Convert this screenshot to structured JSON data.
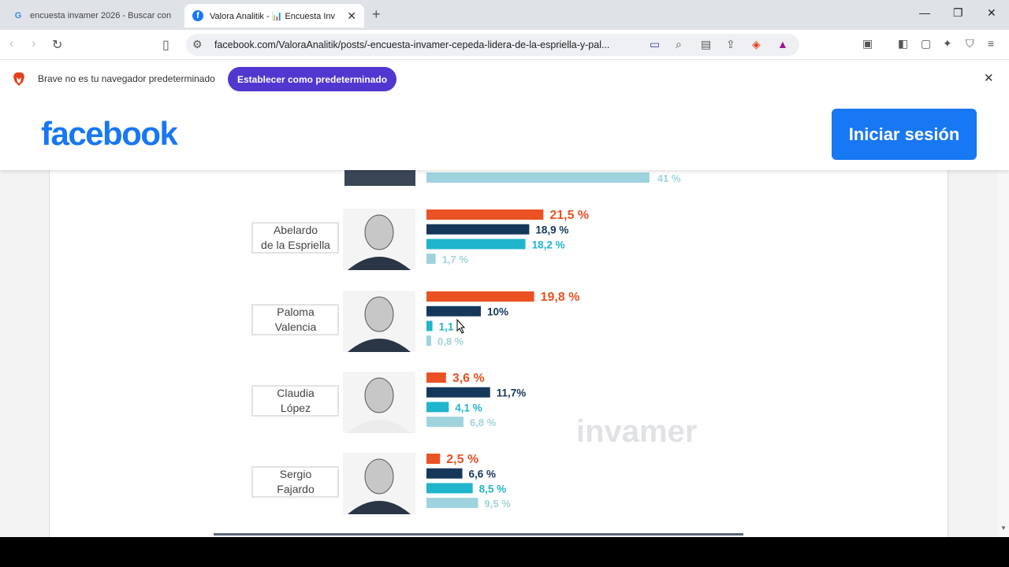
{
  "browser": {
    "tabs": [
      {
        "title": "encuesta invamer 2026 - Buscar con",
        "favicon": "google-icon"
      },
      {
        "title": "Valora Analitik - 📊 Encuesta Inv",
        "favicon": "facebook-icon"
      }
    ],
    "url": "facebook.com/ValoraAnalitik/posts/-encuesta-invamer-cepeda-lidera-de-la-espriella-y-pal...",
    "infobar": {
      "message": "Brave no es tu navegador predeterminado",
      "button_label": "Establecer como predeterminado"
    }
  },
  "facebook": {
    "logo": "facebook",
    "login_label": "Iniciar sesión"
  },
  "chart_data": {
    "type": "bar",
    "watermark": "invamer",
    "colors": [
      "#ea5224",
      "#15385a",
      "#1fb5cc",
      "#9fd3dd"
    ],
    "partial_top": {
      "value": 41,
      "label": "41 %"
    },
    "candidates": [
      {
        "name_line1": "Abelardo",
        "name_line2": "de la Espriella",
        "values": [
          21.5,
          18.9,
          18.2,
          1.7
        ],
        "labels": [
          "21,5 %",
          "18,9 %",
          "18,2 %",
          "1,7 %"
        ]
      },
      {
        "name_line1": "Paloma",
        "name_line2": "Valencia",
        "values": [
          19.8,
          10,
          1.1,
          0.8
        ],
        "labels": [
          "19,8 %",
          "10%",
          "1,1",
          "0,8 %"
        ]
      },
      {
        "name_line1": "Claudia",
        "name_line2": "López",
        "values": [
          3.6,
          11.7,
          4.1,
          6.8
        ],
        "labels": [
          "3,6 %",
          "11,7%",
          "4,1 %",
          "6,8 %"
        ]
      },
      {
        "name_line1": "Sergio",
        "name_line2": "Fajardo",
        "values": [
          2.5,
          6.6,
          8.5,
          9.5
        ],
        "labels": [
          "2,5 %",
          "6,6 %",
          "8,5 %",
          "9,5 %"
        ]
      }
    ]
  }
}
